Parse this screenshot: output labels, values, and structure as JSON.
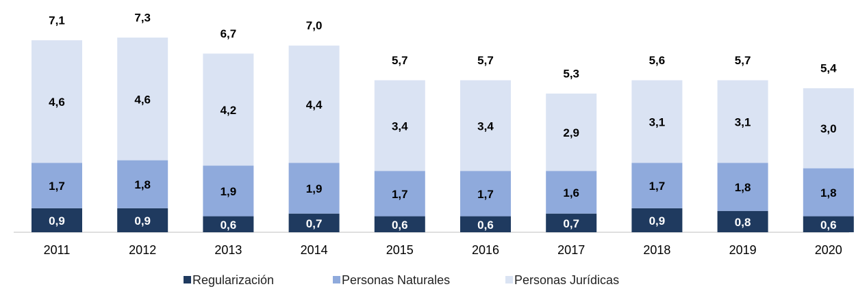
{
  "chart_data": {
    "type": "stacked_bar",
    "categories": [
      "2011",
      "2012",
      "2013",
      "2014",
      "2015",
      "2016",
      "2017",
      "2018",
      "2019",
      "2020"
    ],
    "series": [
      {
        "name": "Regularización",
        "color": "#1f3a5f",
        "label_color": "#ffffff",
        "values": [
          0.9,
          0.9,
          0.6,
          0.7,
          0.6,
          0.6,
          0.7,
          0.9,
          0.8,
          0.6
        ],
        "value_labels": [
          "0,9",
          "0,9",
          "0,6",
          "0,7",
          "0,6",
          "0,6",
          "0,7",
          "0,9",
          "0,8",
          "0,6"
        ]
      },
      {
        "name": "Personas Naturales",
        "color": "#8faadc",
        "label_color": "#000000",
        "values": [
          1.7,
          1.8,
          1.9,
          1.9,
          1.7,
          1.7,
          1.6,
          1.7,
          1.8,
          1.8
        ],
        "value_labels": [
          "1,7",
          "1,8",
          "1,9",
          "1,9",
          "1,7",
          "1,7",
          "1,6",
          "1,7",
          "1,8",
          "1,8"
        ]
      },
      {
        "name": "Personas Jurídicas",
        "color": "#dae3f3",
        "label_color": "#000000",
        "values": [
          4.6,
          4.6,
          4.2,
          4.4,
          3.4,
          3.4,
          2.9,
          3.1,
          3.1,
          3.0
        ],
        "value_labels": [
          "4,6",
          "4,6",
          "4,2",
          "4,4",
          "3,4",
          "3,4",
          "2,9",
          "3,1",
          "3,1",
          "3,0"
        ]
      }
    ],
    "totals": [
      7.1,
      7.3,
      6.7,
      7.0,
      5.7,
      5.7,
      5.3,
      5.6,
      5.7,
      5.4
    ],
    "total_labels": [
      "7,1",
      "7,3",
      "6,7",
      "7,0",
      "5,7",
      "5,7",
      "5,3",
      "5,6",
      "5,7",
      "5,4"
    ],
    "legend": "bottom"
  }
}
